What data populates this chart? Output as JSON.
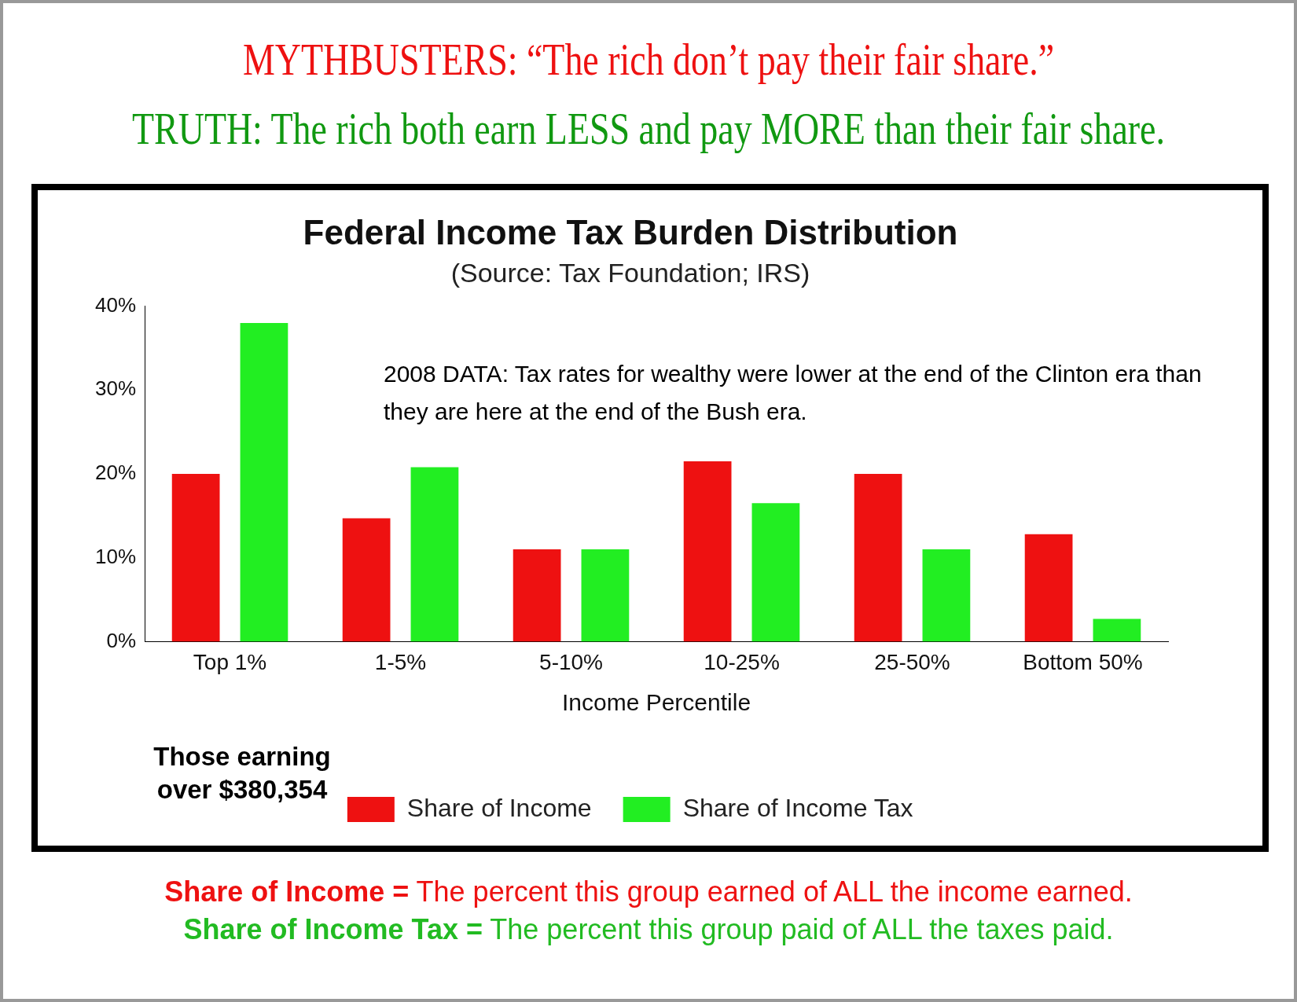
{
  "chart_data": {
    "type": "bar",
    "title": "Federal Income Tax Burden Distribution",
    "subtitle": "(Source: Tax Foundation; IRS)",
    "xlabel": "Income Percentile",
    "categories": [
      "Top 1%",
      "1-5%",
      "5-10%",
      "10-25%",
      "25-50%",
      "Bottom 50%"
    ],
    "series": [
      {
        "name": "Share of Income",
        "color": "#ee1111",
        "values": [
          20,
          14.7,
          11,
          21.5,
          20,
          12.8
        ]
      },
      {
        "name": "Share of Income Tax",
        "color": "#22ee22",
        "values": [
          38,
          20.8,
          11,
          16.5,
          11,
          2.7
        ]
      }
    ],
    "ylim": [
      0,
      40
    ],
    "yticks": [
      {
        "value": 0,
        "label": "0%"
      },
      {
        "value": 10,
        "label": "10%"
      },
      {
        "value": 20,
        "label": "20%"
      },
      {
        "value": 30,
        "label": "30%"
      },
      {
        "value": 40,
        "label": "40%"
      }
    ],
    "grid": false,
    "legend": "bottom",
    "annotations": [
      "MYTHBUSTERS: “The rich don’t pay their fair share.”",
      "TRUTH: The rich both earn LESS and pay MORE than their fair share.",
      "2008 DATA: Tax rates for wealthy were lower at the end of the Clinton era than they are here at the end of the Bush era.",
      "Those earning over $380,354",
      "Share of Income = The percent this group earned of ALL the income earned.",
      "Share of Income Tax = The percent this group paid of ALL the taxes paid."
    ]
  }
}
